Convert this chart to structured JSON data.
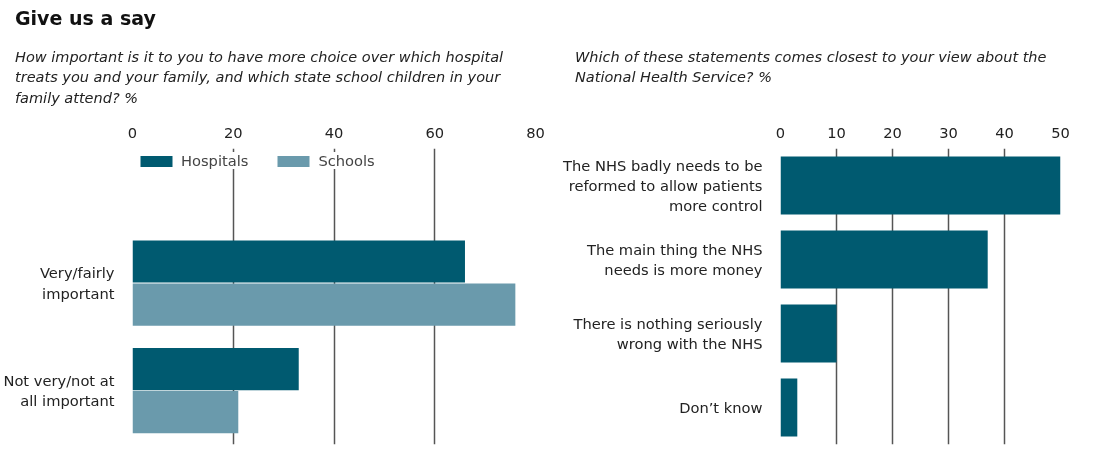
{
  "chart_data": [
    {
      "type": "bar",
      "orientation": "horizontal",
      "title": "Give us a say",
      "subtitle": "How important is it to you to have more choice over which hospital treats you and your family, and which state school children in your family attend? %",
      "categories": [
        "Very/fairly important",
        "Not very/not at all important"
      ],
      "series": [
        {
          "name": "Hospitals",
          "color": "#005a70",
          "values": [
            66,
            33
          ]
        },
        {
          "name": "Schools",
          "color": "#6a9aac",
          "values": [
            76,
            21
          ]
        }
      ],
      "xlim": [
        0,
        80
      ],
      "xticks": [
        0,
        20,
        40,
        60,
        80
      ],
      "grid": "x",
      "legend": "top"
    },
    {
      "type": "bar",
      "orientation": "horizontal",
      "subtitle": "Which of these statements comes closest to your view about the National Health Service? %",
      "categories": [
        "The NHS badly needs to be reformed to allow patients more control",
        "The main thing the NHS needs is more money",
        "There is nothing seriously wrong with the NHS",
        "Don’t know"
      ],
      "series": [
        {
          "color": "#005a70",
          "values": [
            50,
            37,
            10,
            3
          ]
        }
      ],
      "xlim": [
        0,
        50
      ],
      "xticks": [
        0,
        10,
        20,
        30,
        40,
        50
      ],
      "grid": "x"
    }
  ]
}
